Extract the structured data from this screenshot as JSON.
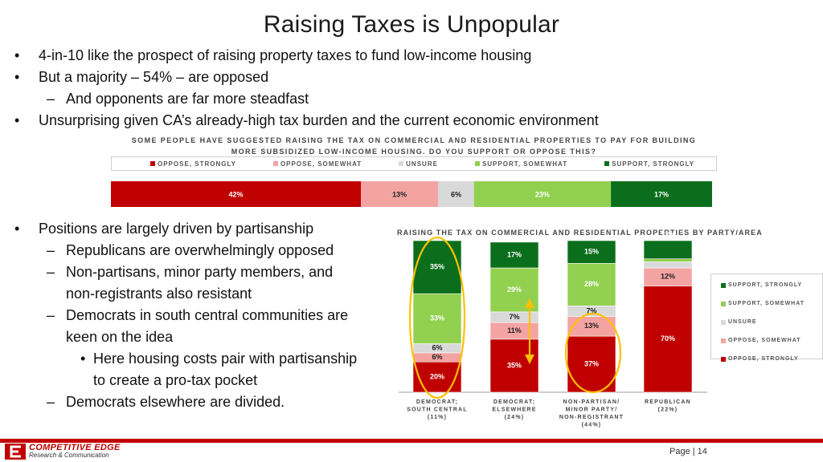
{
  "slide": {
    "title": "Raising Taxes is Unpopular",
    "bullets_top": [
      {
        "level": 1,
        "text": "4-in-10 like the prospect of raising property taxes to fund low-income housing"
      },
      {
        "level": 1,
        "text": "But a majority – 54% – are opposed"
      },
      {
        "level": 2,
        "text": "And opponents are far more steadfast"
      },
      {
        "level": 1,
        "text": "Unsurprising given CA’s already-high tax burden and the current economic environment"
      }
    ],
    "bullets_bottom": {
      "b1": "Positions are largely driven by partisanship",
      "b2": "Republicans are overwhelmingly opposed",
      "b3a": "Non-partisans, minor party members, and",
      "b3b": "non-registrants also resistant",
      "b4a": "Democrats in south central communities are",
      "b4b": "keen on the idea",
      "b5a": "Here housing costs pair with partisanship",
      "b5b": "to create a pro-tax pocket",
      "b6": "Democrats elsewhere are divided."
    },
    "footer": {
      "logo_main": "COMPETITIVE EDGE",
      "logo_sub": "Research & Communication",
      "page_label": "Page | 14"
    }
  },
  "colors": {
    "oppose_strongly": "#c00000",
    "oppose_somewhat": "#f4a3a3",
    "unsure": "#d9d9d9",
    "support_somewhat": "#92d050",
    "support_strongly": "#0b6e1c",
    "highlight": "#ffc000",
    "footer": "#c00000"
  },
  "chart_data": [
    {
      "type": "bar",
      "orientation": "horizontal-stacked",
      "title": "SOME PEOPLE HAVE SUGGESTED RAISING THE TAX ON COMMERCIAL AND RESIDENTIAL PROPERTIES TO PAY FOR BUILDING MORE SUBSIDIZED LOW-INCOME HOUSING. DO YOU SUPPORT OR OPPOSE THIS?",
      "title_line1": "SOME PEOPLE HAVE SUGGESTED RAISING THE TAX ON COMMERCIAL AND RESIDENTIAL PROPERTIES TO PAY FOR BUILDING",
      "title_line2": "MORE SUBSIDIZED LOW-INCOME HOUSING. DO YOU SUPPORT OR OPPOSE THIS?",
      "legend": [
        "OPPOSE, STRONGLY",
        "OPPOSE, SOMEWHAT",
        "UNSURE",
        "SUPPORT, SOMEWHAT",
        "SUPPORT, STRONGLY"
      ],
      "legend_position": "top",
      "series": [
        {
          "key": "oppose_strongly",
          "value": 42,
          "label": "42%"
        },
        {
          "key": "oppose_somewhat",
          "value": 13,
          "label": "13%"
        },
        {
          "key": "unsure",
          "value": 6,
          "label": "6%"
        },
        {
          "key": "support_somewhat",
          "value": 23,
          "label": "23%"
        },
        {
          "key": "support_strongly",
          "value": 17,
          "label": "17%"
        }
      ]
    },
    {
      "type": "bar",
      "orientation": "vertical-stacked",
      "title": "RAISING THE TAX ON COMMERCIAL AND RESIDENTIAL PROPERTIES BY PARTY/AREA",
      "legend": [
        "SUPPORT, STRONGLY",
        "SUPPORT, SOMEWHAT",
        "UNSURE",
        "OPPOSE, SOMEWHAT",
        "OPPOSE, STRONGLY"
      ],
      "legend_position": "right",
      "categories": [
        {
          "lines": [
            "DEMOCRAT;",
            "SOUTH CENTRAL",
            "(11%)"
          ]
        },
        {
          "lines": [
            "DEMOCRAT;",
            "ELSEWHERE",
            "(24%)"
          ]
        },
        {
          "lines": [
            "NON-PARTISAN/",
            "MINOR PARTY/",
            "NON-REGISTRANT",
            "(44%)"
          ]
        },
        {
          "lines": [
            "REPUBLICAN",
            "(22%)"
          ]
        }
      ],
      "series": [
        {
          "key": "oppose_strongly",
          "name": "OPPOSE, STRONGLY",
          "values": [
            20,
            35,
            37,
            70
          ],
          "labels": [
            "20%",
            "35%",
            "37%",
            "70%"
          ]
        },
        {
          "key": "oppose_somewhat",
          "name": "OPPOSE, SOMEWHAT",
          "values": [
            6,
            11,
            13,
            12
          ],
          "labels": [
            "6%",
            "11%",
            "13%",
            "12%"
          ]
        },
        {
          "key": "unsure",
          "name": "UNSURE",
          "values": [
            6,
            7,
            7,
            4
          ],
          "labels": [
            "6%",
            "7%",
            "7%",
            ""
          ]
        },
        {
          "key": "support_somewhat",
          "name": "SUPPORT, SOMEWHAT",
          "values": [
            33,
            29,
            28,
            2
          ],
          "labels": [
            "33%",
            "29%",
            "28%",
            ""
          ]
        },
        {
          "key": "support_strongly",
          "name": "SUPPORT, STRONGLY",
          "values": [
            35,
            17,
            15,
            12
          ],
          "labels": [
            "35%",
            "17%",
            "15%",
            "12%"
          ]
        }
      ],
      "ylim": [
        0,
        100
      ]
    }
  ]
}
